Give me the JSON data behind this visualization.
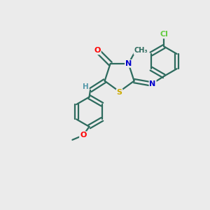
{
  "bg_color": "#ebebeb",
  "bond_color": "#2d6b5e",
  "atom_colors": {
    "O": "#ff0000",
    "N": "#0000cc",
    "S": "#ccaa00",
    "Cl": "#66cc44",
    "H": "#5599aa"
  }
}
